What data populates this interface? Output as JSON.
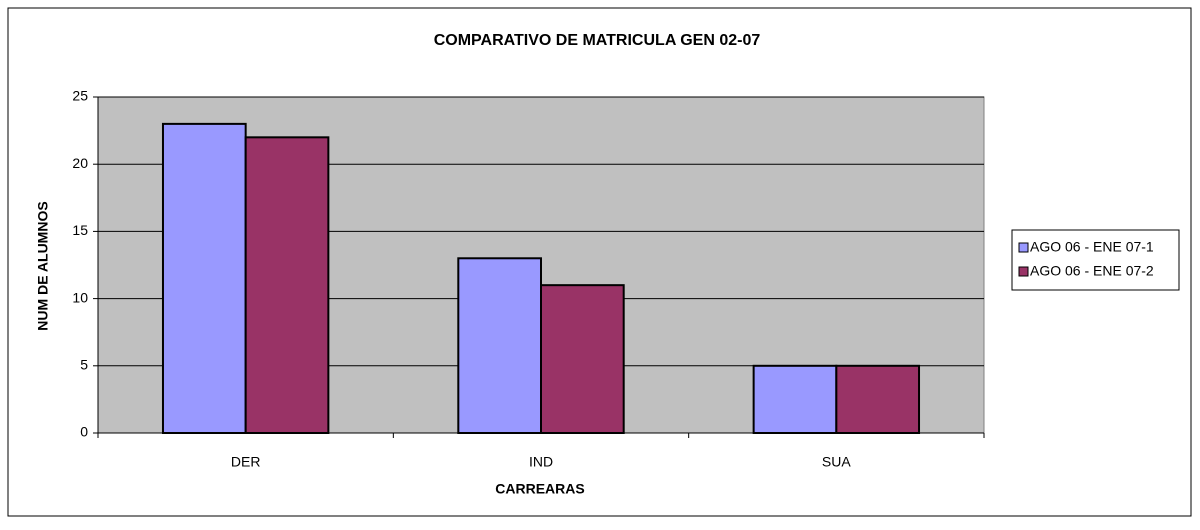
{
  "chart_data": {
    "type": "bar",
    "title": "COMPARATIVO DE MATRICULA GEN 02-07",
    "x_label": "CARREARAS",
    "y_label": "NUM DE ALUMNOS",
    "categories": [
      "DER",
      "IND",
      "SUA"
    ],
    "series": [
      {
        "name": "AGO 06 - ENE 07-1",
        "color": "#9999ff",
        "values": [
          23,
          13,
          5
        ]
      },
      {
        "name": "AGO 06 - ENE 07-2",
        "color": "#993366",
        "values": [
          22,
          11,
          5
        ]
      }
    ],
    "ylim": [
      0,
      25
    ],
    "yticks": [
      0,
      5,
      10,
      15,
      20,
      25
    ],
    "grid": true,
    "legend": "right"
  }
}
